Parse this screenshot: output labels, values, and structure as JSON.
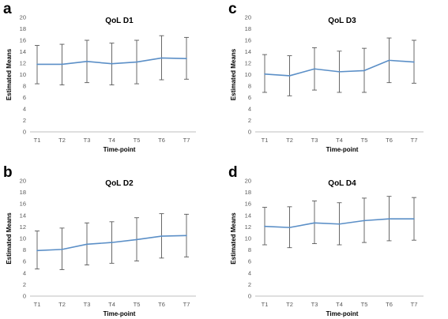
{
  "chart_data": [
    {
      "type": "line",
      "panel_label": "a",
      "title": "QoL D1",
      "xlabel": "Time-point",
      "ylabel": "Estimated Means",
      "categories": [
        "T1",
        "T2",
        "T3",
        "T4",
        "T5",
        "T6",
        "T7"
      ],
      "ylim": [
        0,
        20
      ],
      "yticks": [
        "0",
        "2",
        "4",
        "6",
        "8",
        "10",
        "12",
        "14",
        "16",
        "18",
        "20"
      ],
      "values": [
        11.8,
        11.8,
        12.3,
        11.9,
        12.2,
        12.9,
        12.8
      ],
      "error_upper": [
        15.1,
        15.3,
        16.0,
        15.5,
        16.0,
        16.8,
        16.5
      ],
      "error_lower": [
        8.4,
        8.2,
        8.6,
        8.2,
        8.4,
        9.1,
        9.2
      ],
      "line_color": "#5b8fc7",
      "error_color": "#595959",
      "grid": false
    },
    {
      "type": "line",
      "panel_label": "c",
      "title": "QoL D3",
      "xlabel": "Time-point",
      "ylabel": "Estimated Means",
      "categories": [
        "T1",
        "T2",
        "T3",
        "T4",
        "T5",
        "T6",
        "T7"
      ],
      "ylim": [
        0,
        20
      ],
      "yticks": [
        "0",
        "2",
        "4",
        "6",
        "8",
        "10",
        "12",
        "14",
        "16",
        "18",
        "20"
      ],
      "values": [
        10.1,
        9.8,
        11.0,
        10.5,
        10.7,
        12.5,
        12.2
      ],
      "error_upper": [
        13.5,
        13.3,
        14.7,
        14.1,
        14.6,
        16.4,
        16.0
      ],
      "error_lower": [
        6.9,
        6.3,
        7.3,
        6.9,
        6.9,
        8.6,
        8.5
      ],
      "line_color": "#5b8fc7",
      "error_color": "#595959",
      "grid": false
    },
    {
      "type": "line",
      "panel_label": "b",
      "title": "QoL D2",
      "xlabel": "Time-point",
      "ylabel": "Estimated Means",
      "categories": [
        "T1",
        "T2",
        "T3",
        "T4",
        "T5",
        "T6",
        "T7"
      ],
      "ylim": [
        0,
        20
      ],
      "yticks": [
        "0",
        "2",
        "4",
        "6",
        "8",
        "10",
        "12",
        "14",
        "16",
        "18",
        "20"
      ],
      "values": [
        7.9,
        8.1,
        9.0,
        9.3,
        9.8,
        10.4,
        10.5
      ],
      "error_upper": [
        11.3,
        11.8,
        12.7,
        12.9,
        13.6,
        14.3,
        14.2
      ],
      "error_lower": [
        4.7,
        4.6,
        5.4,
        5.7,
        6.1,
        6.6,
        6.8
      ],
      "line_color": "#5b8fc7",
      "error_color": "#595959",
      "grid": false
    },
    {
      "type": "line",
      "panel_label": "d",
      "title": "QoL D4",
      "xlabel": "Time-point",
      "ylabel": "Estimated Means",
      "categories": [
        "T1",
        "T2",
        "T3",
        "T4",
        "T5",
        "T6",
        "T7"
      ],
      "ylim": [
        0,
        20
      ],
      "yticks": [
        "0",
        "2",
        "4",
        "6",
        "8",
        "10",
        "12",
        "14",
        "16",
        "18",
        "20"
      ],
      "values": [
        12.1,
        11.9,
        12.7,
        12.5,
        13.1,
        13.4,
        13.4
      ],
      "error_upper": [
        15.4,
        15.5,
        16.5,
        16.2,
        17.0,
        17.3,
        17.1
      ],
      "error_lower": [
        8.9,
        8.4,
        9.1,
        8.9,
        9.3,
        9.6,
        9.7
      ],
      "line_color": "#5b8fc7",
      "error_color": "#595959",
      "grid": false
    }
  ]
}
